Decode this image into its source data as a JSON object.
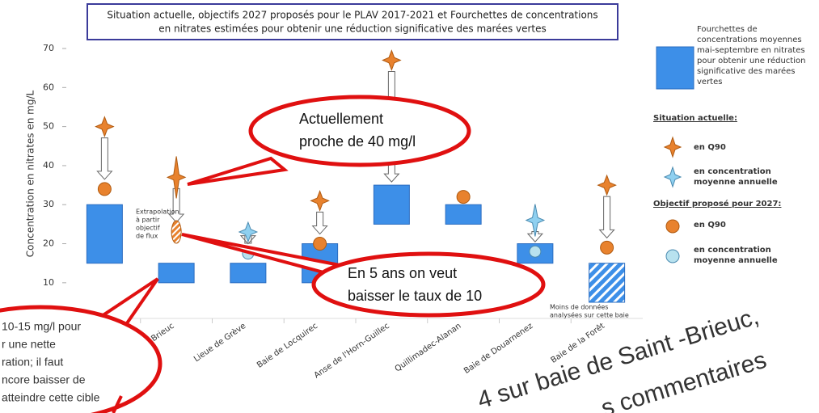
{
  "chart_data": {
    "type": "range-bar",
    "title_lines": [
      "Situation actuelle, objectifs 2027 proposés pour le PLAV 2017-2021 et Fourchettes de concentrations",
      "en nitrates estimées pour obtenir une réduction significative des marées vertes"
    ],
    "y_label": "Concentration en nitrates en mg/L",
    "categories": [
      null,
      "St Brieuc",
      "Lieue de Grève",
      "Baie de Locquirec",
      "Anse de l'Horn-Guillec",
      "Quillimadec-Alanan",
      "Baie de Douarnenez",
      "Baie de la Forêt"
    ],
    "ylim": [
      5,
      70
    ],
    "yticks": [
      10,
      20,
      30,
      40,
      50,
      60,
      70
    ],
    "grid": false,
    "range": {
      "color": "#3d8fe8",
      "low": [
        15,
        10,
        10,
        10,
        25,
        25,
        15,
        5
      ],
      "high": [
        30,
        15,
        15,
        20,
        35,
        30,
        20,
        15
      ],
      "hatched": [
        false,
        false,
        false,
        false,
        false,
        false,
        false,
        true
      ]
    },
    "current_q90": {
      "color": "#e8822e",
      "values": [
        50,
        37,
        null,
        31,
        67,
        null,
        null,
        35
      ]
    },
    "current_mean": {
      "color": "#8fd0f0",
      "values": [
        null,
        null,
        23,
        null,
        null,
        null,
        26,
        null
      ]
    },
    "objective_q90": {
      "color": "#e8822e",
      "values": [
        34,
        23,
        null,
        20,
        null,
        32,
        null,
        19
      ],
      "hatched": [
        false,
        true,
        false,
        false,
        false,
        false,
        false,
        false
      ]
    },
    "objective_mean": {
      "color": "#b8e2ef",
      "values": [
        null,
        null,
        17.5,
        null,
        null,
        null,
        18,
        null
      ]
    },
    "legend": {
      "range": "Fourchettes de concentrations moyennes mai-septembre en nitrates pour obtenir une réduction significative des marées vertes",
      "current_heading": "Situation actuelle:",
      "current_q90": "en Q90",
      "current_mean": "en concentration moyenne annuelle",
      "objective_heading": "Objectif proposé pour 2027:",
      "objective_q90": "en Q90",
      "objective_mean": "en concentration moyenne annuelle"
    },
    "notes": {
      "extrapolation": [
        "Extrapolation",
        "à partir",
        "objectif",
        "de flux"
      ],
      "less_data": [
        "Moins de données",
        "analysées sur cette baie"
      ]
    }
  },
  "annotations": {
    "callout_current": [
      "Actuellement",
      "proche de 40 mg/l"
    ],
    "callout_goal": [
      "En 5 ans on veut",
      "baisser le taux de 10"
    ],
    "left_bubble": [
      "10-15 mg/l pour",
      "r une nette",
      "ration; il faut",
      "ncore baisser de",
      "atteindre cette cible"
    ],
    "bottom_text": [
      "4 sur baie de Saint -Brieuc,",
      "s commentaires"
    ]
  }
}
